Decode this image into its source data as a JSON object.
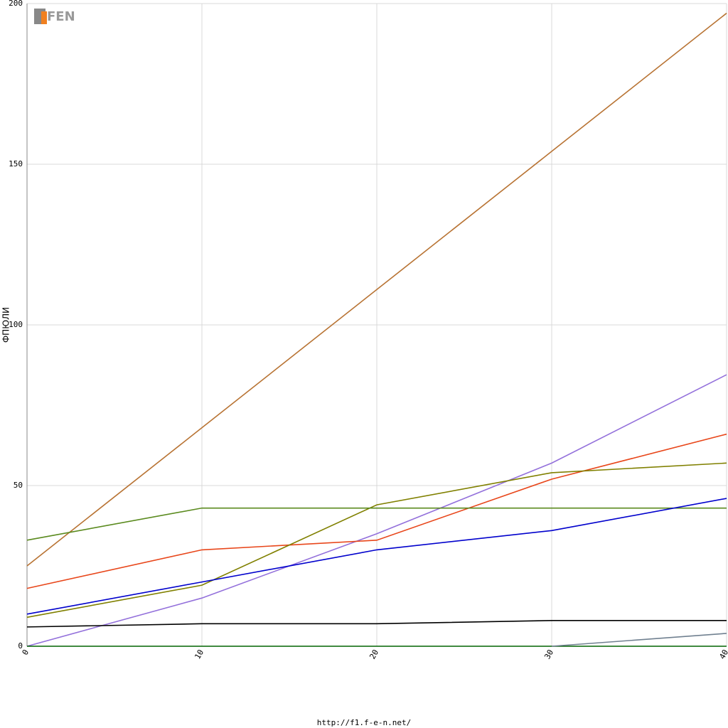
{
  "chart_data": {
    "type": "line",
    "logo": "FEN",
    "ylabel": "ФПЮЛИ",
    "footer": "http://f1.f-e-n.net/",
    "x": [
      0,
      10,
      20,
      30,
      40
    ],
    "xlim": [
      0,
      40
    ],
    "xticks": [
      0,
      10,
      20,
      30,
      40
    ],
    "ylim": [
      0,
      200
    ],
    "yticks": [
      0,
      50,
      100,
      150,
      200
    ],
    "grid": true,
    "series": [
      {
        "color": "#b87333",
        "values": [
          25,
          68,
          111,
          154,
          197
        ]
      },
      {
        "color": "#9370db",
        "values": [
          0,
          15,
          35,
          57,
          84.5
        ]
      },
      {
        "color": "#e8461a",
        "values": [
          18,
          30,
          33,
          52,
          66
        ]
      },
      {
        "color": "#808000",
        "values": [
          9,
          19,
          44,
          54,
          57
        ]
      },
      {
        "color": "#5a8a1e",
        "values": [
          33,
          43,
          43,
          43,
          43
        ]
      },
      {
        "color": "#0000cc",
        "values": [
          10,
          20,
          30,
          36,
          46
        ]
      },
      {
        "color": "#000000",
        "values": [
          6,
          7,
          7,
          8,
          8
        ]
      },
      {
        "color": "#006400",
        "values": [
          0,
          0,
          0,
          0,
          0
        ]
      },
      {
        "color": "#708090",
        "values": [
          null,
          null,
          null,
          0,
          4
        ]
      }
    ]
  }
}
